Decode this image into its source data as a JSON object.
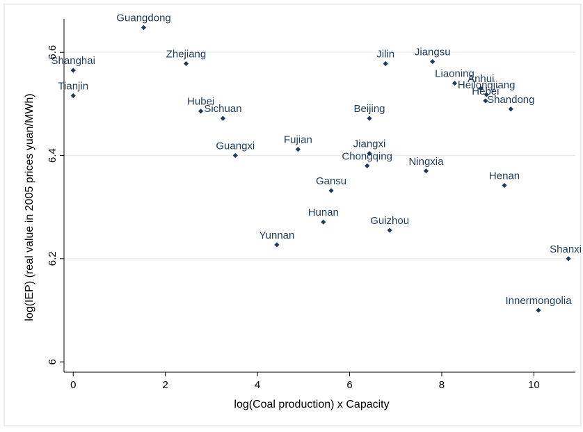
{
  "chart_data": {
    "type": "scatter",
    "xlabel": "log(Coal production) x Capacity",
    "ylabel": "log(IEP) (real value in 2005 prices yuan/MWh)",
    "xlim": [
      -0.2,
      10.9
    ],
    "ylim": [
      5.98,
      6.665
    ],
    "x_ticks": [
      0,
      2,
      4,
      6,
      8,
      10
    ],
    "y_ticks": [
      6,
      6.2,
      6.4,
      6.6
    ],
    "y_tick_labels": [
      "6",
      "6.2",
      "6.4",
      "6.6"
    ],
    "grid": "horizontal",
    "colors": {
      "marker": "#1f3b5a",
      "label": "#1f3b5a",
      "grid": "#e4e8ec",
      "axis": "#000000",
      "frame": "#d9dfe5"
    },
    "points": [
      {
        "label": "Guangdong",
        "x": 1.53,
        "y": 6.648
      },
      {
        "label": "Shanghai",
        "x": 0.0,
        "y": 6.565
      },
      {
        "label": "Tianjin",
        "x": 0.0,
        "y": 6.516
      },
      {
        "label": "Zhejiang",
        "x": 2.45,
        "y": 6.578
      },
      {
        "label": "Hubei",
        "x": 2.77,
        "y": 6.486
      },
      {
        "label": "Sichuan",
        "x": 3.25,
        "y": 6.472
      },
      {
        "label": "Guangxi",
        "x": 3.52,
        "y": 6.4
      },
      {
        "label": "Fujian",
        "x": 4.88,
        "y": 6.412
      },
      {
        "label": "Yunnan",
        "x": 4.42,
        "y": 6.227
      },
      {
        "label": "Hunan",
        "x": 5.43,
        "y": 6.271
      },
      {
        "label": "Gansu",
        "x": 5.6,
        "y": 6.332
      },
      {
        "label": "Jilin",
        "x": 6.78,
        "y": 6.578
      },
      {
        "label": "Beijing",
        "x": 6.43,
        "y": 6.472
      },
      {
        "label": "Jiangxi",
        "x": 6.43,
        "y": 6.404
      },
      {
        "label": "Chongqing",
        "x": 6.38,
        "y": 6.38
      },
      {
        "label": "Guizhou",
        "x": 6.87,
        "y": 6.255
      },
      {
        "label": "Ningxia",
        "x": 7.66,
        "y": 6.37
      },
      {
        "label": "Jiangsu",
        "x": 7.8,
        "y": 6.582
      },
      {
        "label": "Liaoning",
        "x": 8.28,
        "y": 6.54
      },
      {
        "label": "Anhui",
        "x": 8.85,
        "y": 6.53
      },
      {
        "label": "Heilongjiang",
        "x": 8.97,
        "y": 6.518
      },
      {
        "label": "Hebei",
        "x": 8.95,
        "y": 6.506
      },
      {
        "label": "Shandong",
        "x": 9.5,
        "y": 6.49
      },
      {
        "label": "Henan",
        "x": 9.36,
        "y": 6.342
      },
      {
        "label": "Shanxi",
        "x": 10.75,
        "y": 6.2
      },
      {
        "label": "Innermongolia",
        "x": 10.1,
        "y": 6.1
      }
    ]
  }
}
